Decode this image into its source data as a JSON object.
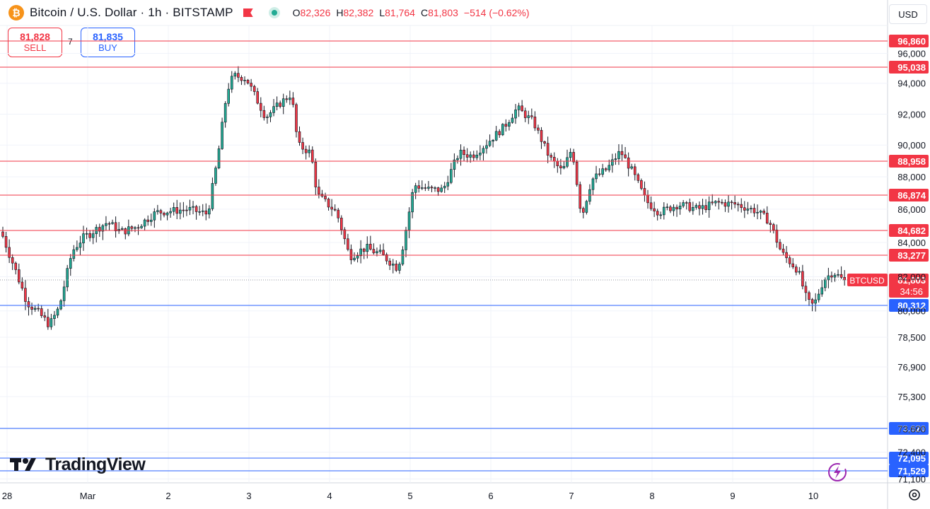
{
  "header": {
    "coin_icon": "bitcoin-icon",
    "title": "Bitcoin / U.S. Dollar · 1h · BITSTAMP",
    "flag_icon": "flag-icon",
    "status_icon": "market-open-dot-icon",
    "ohlc": {
      "o_label": "O",
      "o": "82,326",
      "h_label": "H",
      "h": "82,382",
      "l_label": "L",
      "l": "81,764",
      "c_label": "C",
      "c": "81,803",
      "change": "−514 (−0.62%)"
    }
  },
  "trade": {
    "sell_price": "81,828",
    "sell_label": "SELL",
    "spread": "7",
    "buy_price": "81,835",
    "buy_label": "BUY"
  },
  "currency": {
    "selected": "USD"
  },
  "branding": {
    "logo_text": "TradingView"
  },
  "colors": {
    "up": "#22ab94",
    "down": "#f23645",
    "resistance": "#f23645",
    "support": "#2962ff",
    "price_label": "#f23645"
  },
  "chart_data": {
    "type": "candlestick",
    "symbol": "BTCUSD",
    "interval": "1h",
    "ylim": [
      70900,
      97800
    ],
    "y_ticks": [
      96000,
      94000,
      92000,
      90000,
      88000,
      86000,
      84000,
      82000,
      80000,
      78500,
      76900,
      75300,
      73600,
      72400,
      71100
    ],
    "y_tick_labels": [
      "96,000",
      "94,000",
      "92,000",
      "90,000",
      "88,000",
      "86,000",
      "84,000",
      "82,000",
      "80,000",
      "78,500",
      "76,900",
      "75,300",
      "73,600",
      "72,400",
      "71,100"
    ],
    "x_ticks": [
      "28",
      "Mar",
      "2",
      "3",
      "4",
      "5",
      "6",
      "7",
      "8",
      "9",
      "10"
    ],
    "grid": true,
    "current_price": {
      "symbol": "BTCUSD",
      "value": 81803,
      "label": "81,803",
      "countdown": "34:56"
    },
    "horizontal_levels": [
      {
        "value": 96860,
        "label": "96,860",
        "kind": "resistance"
      },
      {
        "value": 95038,
        "label": "95,038",
        "kind": "resistance"
      },
      {
        "value": 88958,
        "label": "88,958",
        "kind": "resistance"
      },
      {
        "value": 86874,
        "label": "86,874",
        "kind": "resistance"
      },
      {
        "value": 84682,
        "label": "84,682",
        "kind": "resistance"
      },
      {
        "value": 83277,
        "label": "83,277",
        "kind": "resistance"
      },
      {
        "value": 80312,
        "label": "80,312",
        "kind": "support"
      },
      {
        "value": 73620,
        "label": "73,620",
        "kind": "support"
      },
      {
        "value": 72095,
        "label": "72,095",
        "kind": "support"
      },
      {
        "value": 71529,
        "label": "71,529",
        "kind": "support"
      }
    ],
    "anchors": [
      {
        "t": 0,
        "p": 84600
      },
      {
        "t": 4,
        "p": 82600
      },
      {
        "t": 8,
        "p": 80500
      },
      {
        "t": 12,
        "p": 79800
      },
      {
        "t": 15,
        "p": 79200
      },
      {
        "t": 18,
        "p": 80200
      },
      {
        "t": 22,
        "p": 83500
      },
      {
        "t": 25,
        "p": 84200
      },
      {
        "t": 33,
        "p": 85200
      },
      {
        "t": 37,
        "p": 84600
      },
      {
        "t": 42,
        "p": 84900
      },
      {
        "t": 48,
        "p": 85800
      },
      {
        "t": 58,
        "p": 86000
      },
      {
        "t": 64,
        "p": 85700
      },
      {
        "t": 67,
        "p": 89000
      },
      {
        "t": 70,
        "p": 93500
      },
      {
        "t": 72,
        "p": 94500
      },
      {
        "t": 76,
        "p": 94300
      },
      {
        "t": 82,
        "p": 91800
      },
      {
        "t": 87,
        "p": 92800
      },
      {
        "t": 90,
        "p": 93300
      },
      {
        "t": 92,
        "p": 90000
      },
      {
        "t": 96,
        "p": 89500
      },
      {
        "t": 98,
        "p": 86900
      },
      {
        "t": 104,
        "p": 85800
      },
      {
        "t": 108,
        "p": 83200
      },
      {
        "t": 113,
        "p": 83700
      },
      {
        "t": 118,
        "p": 83300
      },
      {
        "t": 123,
        "p": 82500
      },
      {
        "t": 125,
        "p": 84200
      },
      {
        "t": 128,
        "p": 87500
      },
      {
        "t": 133,
        "p": 87200
      },
      {
        "t": 137,
        "p": 87200
      },
      {
        "t": 142,
        "p": 89500
      },
      {
        "t": 146,
        "p": 89300
      },
      {
        "t": 150,
        "p": 90000
      },
      {
        "t": 156,
        "p": 91200
      },
      {
        "t": 160,
        "p": 92400
      },
      {
        "t": 165,
        "p": 91500
      },
      {
        "t": 170,
        "p": 89200
      },
      {
        "t": 174,
        "p": 88300
      },
      {
        "t": 177,
        "p": 89800
      },
      {
        "t": 180,
        "p": 85500
      },
      {
        "t": 183,
        "p": 87800
      },
      {
        "t": 188,
        "p": 88500
      },
      {
        "t": 192,
        "p": 89600
      },
      {
        "t": 196,
        "p": 88200
      },
      {
        "t": 200,
        "p": 86500
      },
      {
        "t": 204,
        "p": 85800
      },
      {
        "t": 210,
        "p": 86300
      },
      {
        "t": 216,
        "p": 86000
      },
      {
        "t": 222,
        "p": 86400
      },
      {
        "t": 228,
        "p": 86300
      },
      {
        "t": 234,
        "p": 85900
      },
      {
        "t": 238,
        "p": 85300
      },
      {
        "t": 242,
        "p": 83400
      },
      {
        "t": 247,
        "p": 82400
      },
      {
        "t": 250,
        "p": 80500
      },
      {
        "t": 252,
        "p": 80300
      },
      {
        "t": 255,
        "p": 81800
      },
      {
        "t": 258,
        "p": 82300
      },
      {
        "t": 261,
        "p": 81803
      }
    ]
  }
}
